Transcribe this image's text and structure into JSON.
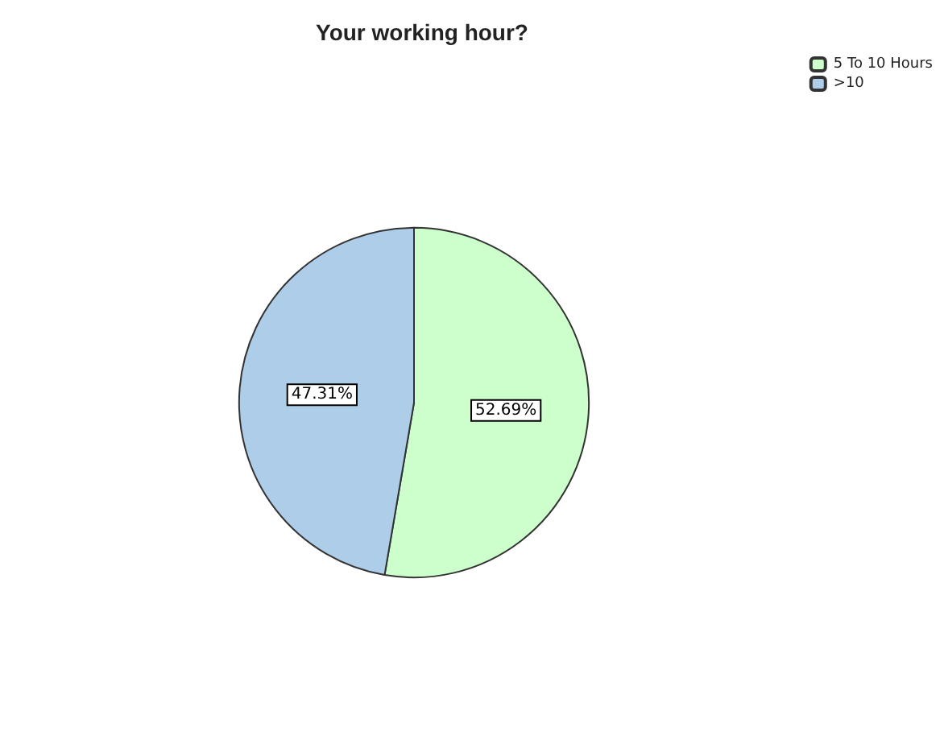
{
  "chart_data": {
    "type": "pie",
    "title": "Your working hour?",
    "categories": [
      "5 To 10 Hours",
      ">10"
    ],
    "values": [
      52.69,
      47.31
    ],
    "colors": [
      "#ccffcc",
      "#aecde9"
    ],
    "value_labels": [
      "52.69%",
      "47.31%"
    ],
    "legend": "top right"
  }
}
